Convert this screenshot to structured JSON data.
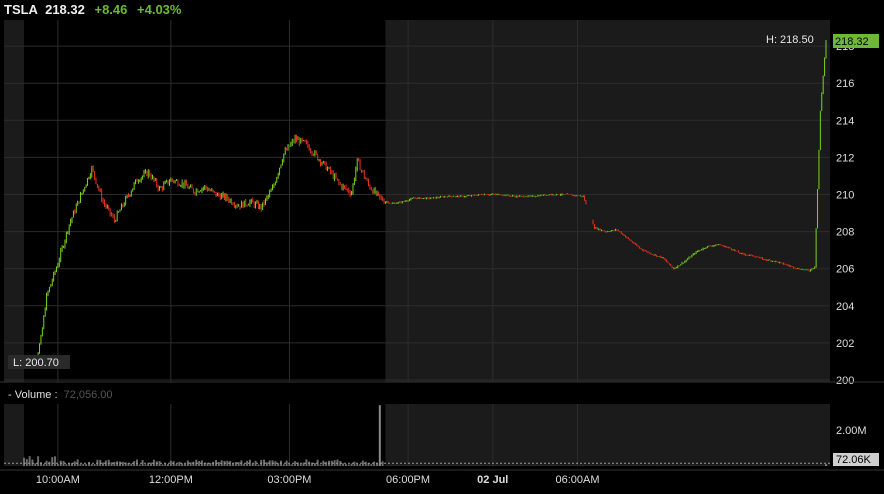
{
  "header": {
    "symbol": "TSLA",
    "last": "218.32",
    "change": "+8.46",
    "change_pct": "+4.03%"
  },
  "volume_panel": {
    "label": "- Volume :",
    "value": "72,056.00"
  },
  "colors": {
    "up": "#7ed321",
    "down": "#e8321e",
    "accent_green": "#6cb93a",
    "grid": "#2c2c2c",
    "afterhours_bg": "#1b1b1b"
  },
  "chart_data": {
    "type": "candlestick",
    "symbol": "TSLA",
    "price_axis": {
      "ticks": [
        "218",
        "216",
        "214",
        "212",
        "210",
        "208",
        "206",
        "204",
        "202",
        "200"
      ],
      "range": [
        200,
        219.3
      ]
    },
    "volume_axis": {
      "ticks": [
        "2.00M"
      ],
      "range": [
        0,
        2600000
      ]
    },
    "time_axis": {
      "ticks": [
        "10:00AM",
        "12:00PM",
        "03:00PM",
        "06:00PM",
        "02 Jul",
        "06:00AM"
      ]
    },
    "markers": {
      "high": "H: 218.50",
      "low": "L: 200.70",
      "last": "218.32",
      "last_volume": "72.06K"
    },
    "session_shading": "regular hours unshaded, extended hours shaded",
    "price_path": [
      [
        0,
        200.7
      ],
      [
        2,
        200.9
      ],
      [
        3,
        202.2
      ],
      [
        4,
        204.5
      ],
      [
        6,
        206.3
      ],
      [
        8,
        208.4
      ],
      [
        10,
        209.9
      ],
      [
        12,
        211.4
      ],
      [
        14,
        209.6
      ],
      [
        16,
        208.6
      ],
      [
        18,
        209.7
      ],
      [
        20,
        210.8
      ],
      [
        22,
        211.2
      ],
      [
        24,
        210.3
      ],
      [
        26,
        210.8
      ],
      [
        28,
        210.6
      ],
      [
        30,
        210.2
      ],
      [
        32,
        210.4
      ],
      [
        34,
        210.0
      ],
      [
        36,
        209.8
      ],
      [
        38,
        209.4
      ],
      [
        40,
        209.6
      ],
      [
        42,
        209.3
      ],
      [
        44,
        210.3
      ],
      [
        46,
        212.2
      ],
      [
        48,
        213.0
      ],
      [
        50,
        212.7
      ],
      [
        52,
        212.0
      ],
      [
        54,
        211.3
      ],
      [
        56,
        210.5
      ],
      [
        58,
        210.1
      ],
      [
        59,
        211.8
      ],
      [
        61,
        210.5
      ],
      [
        63,
        209.8
      ],
      [
        65,
        209.5
      ],
      [
        67,
        209.6
      ],
      [
        69,
        209.8
      ],
      [
        72,
        209.8
      ],
      [
        75,
        209.9
      ],
      [
        78,
        209.9
      ],
      [
        81,
        210.0
      ],
      [
        84,
        210.0
      ],
      [
        87,
        209.9
      ],
      [
        90,
        209.9
      ],
      [
        93,
        210.0
      ],
      [
        96,
        210.0
      ],
      [
        99,
        209.9
      ],
      [
        101,
        208.2
      ],
      [
        103,
        208.0
      ],
      [
        105,
        208.1
      ],
      [
        107,
        207.6
      ],
      [
        109,
        207.1
      ],
      [
        111,
        206.8
      ],
      [
        113,
        206.6
      ],
      [
        115,
        206.0
      ],
      [
        117,
        206.4
      ],
      [
        119,
        206.9
      ],
      [
        121,
        207.2
      ],
      [
        123,
        207.3
      ],
      [
        125,
        207.1
      ],
      [
        127,
        206.8
      ],
      [
        129,
        206.7
      ],
      [
        131,
        206.5
      ],
      [
        133,
        206.4
      ],
      [
        135,
        206.2
      ],
      [
        137,
        206.0
      ],
      [
        139,
        205.9
      ],
      [
        140,
        206.1
      ],
      [
        141,
        214.5
      ],
      [
        142,
        218.32
      ]
    ],
    "volume_spikes": [
      {
        "bar": 63,
        "volume": 2550000
      },
      {
        "bar": 142,
        "volume": 72060
      }
    ]
  }
}
